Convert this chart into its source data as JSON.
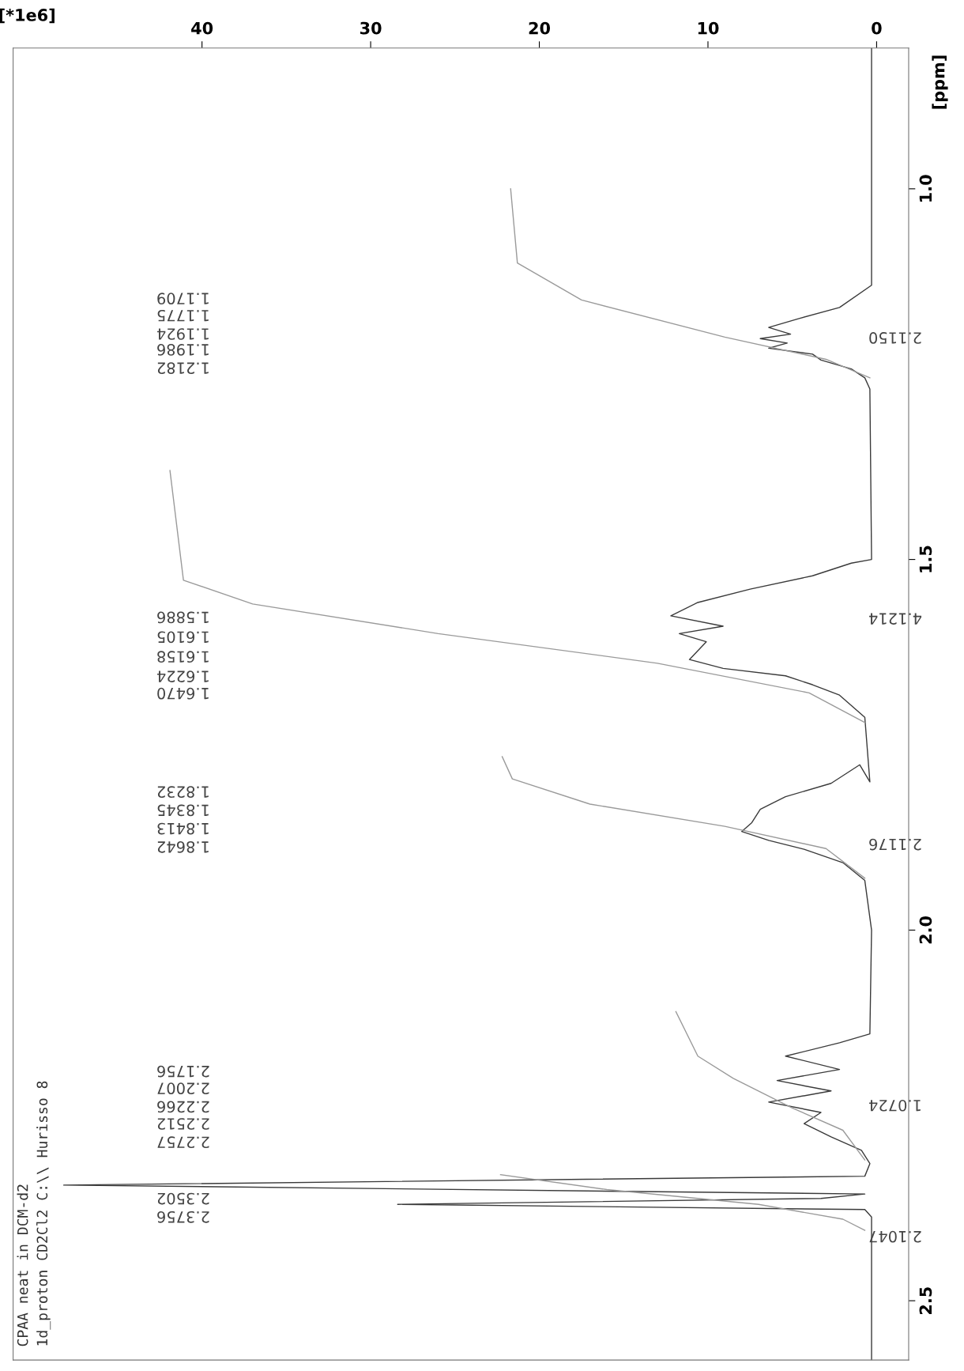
{
  "chart_data": {
    "type": "line",
    "xlabel": "[*1e6]",
    "ylabel": "[ppm]",
    "xlim": [
      51.2,
      -1.9
    ],
    "xticks": [
      0,
      10,
      20,
      30,
      40
    ],
    "ylim": [
      2.58,
      0.81
    ],
    "yticks": [
      {
        "value": 1.0,
        "label": "1.0"
      },
      {
        "value": 1.5,
        "label": "1.5"
      },
      {
        "value": 2.0,
        "label": "2.0"
      },
      {
        "value": 2.5,
        "label": "2.5"
      }
    ],
    "grid": false,
    "legend": false,
    "series": [
      {
        "color": "#3a3a3a",
        "values": [
          0.81,
          1.0,
          1.13,
          1.16,
          1.175,
          1.187,
          1.196,
          1.202,
          1.208,
          1.215,
          1.223,
          1.231,
          1.243,
          1.255,
          1.27,
          1.5,
          1.505,
          1.522,
          1.54,
          1.558,
          1.576,
          1.59,
          1.6,
          1.611,
          1.623,
          1.635,
          1.647,
          1.657,
          1.669,
          1.683,
          1.713,
          1.8,
          1.777,
          1.802,
          1.82,
          1.837,
          1.855,
          1.867,
          1.879,
          1.891,
          1.909,
          1.933,
          2.0,
          2.14,
          2.152,
          2.17,
          2.188,
          2.203,
          2.217,
          2.232,
          2.246,
          2.261,
          2.279,
          2.297,
          2.315,
          2.332,
          2.344,
          2.356,
          2.362,
          2.37,
          2.377,
          2.387,
          2.4,
          2.58
        ],
        "x": [
          0.3,
          0.3,
          0.3,
          2.2,
          4.6,
          6.4,
          5.1,
          6.9,
          5.3,
          6.4,
          3.8,
          3.3,
          1.5,
          0.7,
          0.4,
          0.3,
          1.5,
          3.8,
          7.5,
          10.6,
          12.2,
          9.1,
          11.7,
          10.1,
          10.6,
          11.1,
          9.1,
          5.4,
          3.8,
          2.2,
          0.7,
          0.4,
          1.0,
          2.7,
          5.4,
          6.9,
          7.4,
          8.0,
          6.4,
          4.3,
          2.0,
          0.7,
          0.3,
          0.4,
          2.2,
          5.4,
          2.2,
          5.9,
          2.7,
          6.4,
          3.3,
          4.3,
          2.7,
          0.9,
          0.4,
          0.7,
          48.2,
          0.7,
          3.3,
          28.4,
          0.7,
          0.3,
          0.3,
          0.3
        ]
      },
      {
        "color": "#9a9a9a",
        "values": [
          1.0,
          1.1,
          1.15,
          1.2,
          1.23,
          1.255
        ],
        "x": [
          21.7,
          21.3,
          17.5,
          9.0,
          3.0,
          0.4
        ]
      },
      {
        "color": "#9a9a9a",
        "values": [
          1.38,
          1.528,
          1.56,
          1.6,
          1.64,
          1.68,
          1.72
        ],
        "x": [
          41.9,
          41.1,
          37.0,
          26.0,
          13.0,
          4.0,
          0.7
        ]
      },
      {
        "color": "#9a9a9a",
        "values": [
          1.766,
          1.796,
          1.83,
          1.86,
          1.89,
          1.93
        ],
        "x": [
          22.2,
          21.6,
          17.0,
          9.0,
          3.0,
          0.7
        ]
      },
      {
        "color": "#9a9a9a",
        "values": [
          2.11,
          2.17,
          2.2,
          2.24,
          2.27,
          2.31
        ],
        "x": [
          11.9,
          10.6,
          8.5,
          5.0,
          2.0,
          0.7
        ]
      },
      {
        "color": "#9a9a9a",
        "values": [
          2.33,
          2.35,
          2.37,
          2.39,
          2.405
        ],
        "x": [
          22.3,
          16.0,
          7.0,
          2.0,
          0.7
        ]
      }
    ],
    "annotations": [
      "1.1709",
      "1.1775",
      "1.1924",
      "1.1986",
      "1.2182",
      "1.5886",
      "1.6105",
      "1.6158",
      "1.6224",
      "1.6470",
      "1.8232",
      "1.8345",
      "1.8413",
      "1.8642",
      "2.1756",
      "2.2007",
      "2.2266",
      "2.2512",
      "2.2757",
      "2.3502",
      "2.3756",
      "2.1150",
      "4.1214",
      "2.1176",
      "1.0724",
      "2.1047",
      "CPAA neat in DCM-d2",
      "1d_proton CD2Cl2 C:\\\\ Hurisso 8"
    ]
  }
}
